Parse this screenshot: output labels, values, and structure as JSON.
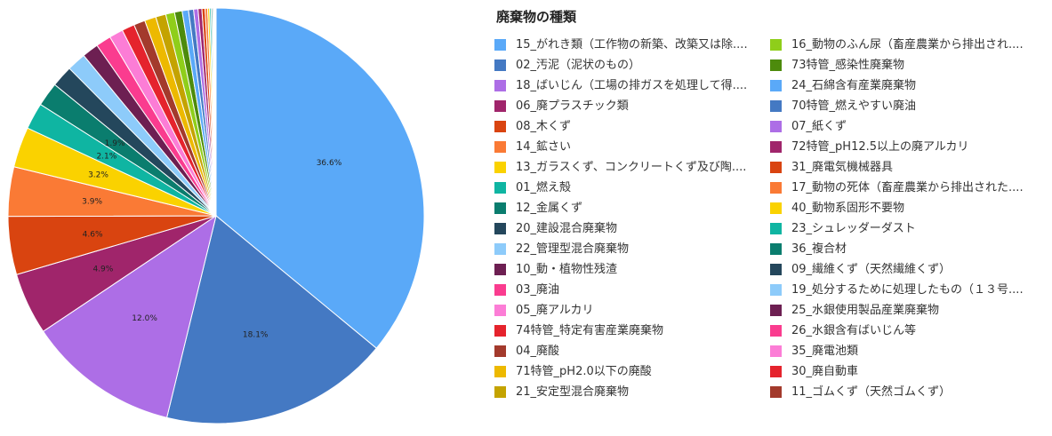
{
  "chart_data": {
    "type": "pie",
    "legend_title": "廃棄物の種類",
    "legend_position": "right",
    "slices": [
      {
        "name": "15_がれき類（工作物の新築、改築又は除....",
        "value": 36.6,
        "label": "36.6%",
        "color": "#5aa9f8"
      },
      {
        "name": "02_汚泥（泥状のもの）",
        "value": 18.1,
        "label": "18.1%",
        "color": "#4479c3"
      },
      {
        "name": "18_ばいじん（工場の排ガスを処理して得....",
        "value": 12.0,
        "label": "12.0%",
        "color": "#ad6ee6"
      },
      {
        "name": "06_廃プラスチック類",
        "value": 4.9,
        "label": "4.9%",
        "color": "#a0256b"
      },
      {
        "name": "08_木くず",
        "value": 4.6,
        "label": "4.6%",
        "color": "#d94410"
      },
      {
        "name": "14_鉱さい",
        "value": 3.9,
        "label": "3.9%",
        "color": "#fa7a35"
      },
      {
        "name": "13_ガラスくず、コンクリートくず及び陶....",
        "value": 3.2,
        "label": "3.2%",
        "color": "#fad200"
      },
      {
        "name": "01_燃え殻",
        "value": 2.1,
        "label": "2.1%",
        "color": "#0fb5a2"
      },
      {
        "name": "12_金属くず",
        "value": 1.9,
        "label": "1.9%",
        "color": "#0a7d6e"
      },
      {
        "name": "20_建設混合廃棄物",
        "value": 1.7,
        "label": "",
        "color": "#24475c"
      },
      {
        "name": "22_管理型混合廃棄物",
        "value": 1.5,
        "label": "",
        "color": "#8dcbfa"
      },
      {
        "name": "10_動・植物性残渣",
        "value": 1.3,
        "label": "",
        "color": "#6d1f52"
      },
      {
        "name": "03_廃油",
        "value": 1.2,
        "label": "",
        "color": "#fa3c8f"
      },
      {
        "name": "05_廃アルカリ",
        "value": 1.1,
        "label": "",
        "color": "#fc7dd6"
      },
      {
        "name": "74特管_特定有害産業廃棄物",
        "value": 1.0,
        "label": "",
        "color": "#e5232d"
      },
      {
        "name": "04_廃酸",
        "value": 0.9,
        "label": "",
        "color": "#a33a2c"
      },
      {
        "name": "71特管_pH2.0以下の廃酸",
        "value": 0.9,
        "label": "",
        "color": "#edb900"
      },
      {
        "name": "21_安定型混合廃棄物",
        "value": 0.8,
        "label": "",
        "color": "#c4a300"
      },
      {
        "name": "16_動物のふん尿（畜産農業から排出され....",
        "value": 0.7,
        "label": "",
        "color": "#8fce1a"
      },
      {
        "name": "73特管_感染性廃棄物",
        "value": 0.6,
        "label": "",
        "color": "#4d8b0c"
      },
      {
        "name": "24_石綿含有産業廃棄物",
        "value": 0.5,
        "label": "",
        "color": "#5aa9f8"
      },
      {
        "name": "70特管_燃えやすい廃油",
        "value": 0.4,
        "label": "",
        "color": "#4479c3"
      },
      {
        "name": "07_紙くず",
        "value": 0.35,
        "label": "",
        "color": "#ad6ee6"
      },
      {
        "name": "72特管_pH12.5以上の廃アルカリ",
        "value": 0.3,
        "label": "",
        "color": "#a0256b"
      },
      {
        "name": "31_廃電気機械器具",
        "value": 0.25,
        "label": "",
        "color": "#d94410"
      },
      {
        "name": "17_動物の死体（畜産農業から排出された....",
        "value": 0.2,
        "label": "",
        "color": "#fa7a35"
      },
      {
        "name": "40_動物系固形不要物",
        "value": 0.15,
        "label": "",
        "color": "#fad200"
      },
      {
        "name": "23_シュレッダーダスト",
        "value": 0.12,
        "label": "",
        "color": "#0fb5a2"
      },
      {
        "name": "36_複合材",
        "value": 0.1,
        "label": "",
        "color": "#0a7d6e"
      },
      {
        "name": "09_繊維くず（天然繊維くず）",
        "value": 0.08,
        "label": "",
        "color": "#24475c"
      },
      {
        "name": "19_処分するために処理したもの（１３号....",
        "value": 0.06,
        "label": "",
        "color": "#8dcbfa"
      },
      {
        "name": "25_水銀使用製品産業廃棄物",
        "value": 0.05,
        "label": "",
        "color": "#6d1f52"
      },
      {
        "name": "26_水銀含有ばいじん等",
        "value": 0.04,
        "label": "",
        "color": "#fa3c8f"
      },
      {
        "name": "35_廃電池類",
        "value": 0.03,
        "label": "",
        "color": "#fc7dd6"
      },
      {
        "name": "30_廃自動車",
        "value": 0.02,
        "label": "",
        "color": "#e5232d"
      },
      {
        "name": "11_ゴムくず（天然ゴムくず）",
        "value": 0.01,
        "label": "",
        "color": "#a33a2c"
      }
    ]
  }
}
